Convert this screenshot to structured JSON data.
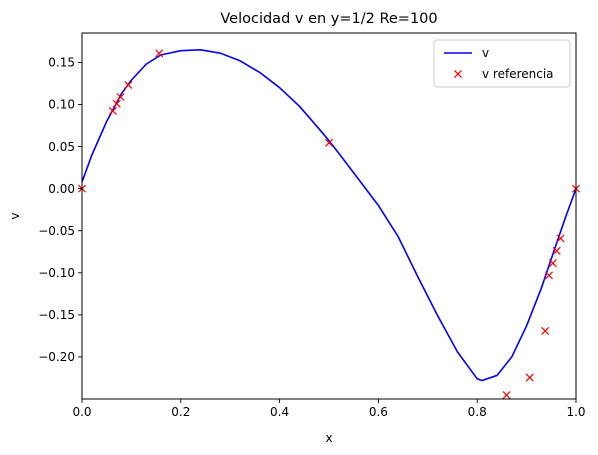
{
  "chart_data": {
    "type": "line",
    "title": "Velocidad v en y=1/2 Re=100",
    "xlabel": "x",
    "ylabel": "v",
    "xlim": [
      0.0,
      1.0
    ],
    "ylim": [
      -0.25,
      0.185
    ],
    "grid": false,
    "legend_position": "top-right",
    "x_ticks": [
      0.0,
      0.2,
      0.4,
      0.6,
      0.8,
      1.0
    ],
    "x_tick_labels": [
      "0.0",
      "0.2",
      "0.4",
      "0.6",
      "0.8",
      "1.0"
    ],
    "y_ticks": [
      0.15,
      0.1,
      0.05,
      0.0,
      -0.05,
      -0.1,
      -0.15,
      -0.2
    ],
    "y_tick_labels": [
      "0.15",
      "0.10",
      "0.05",
      "0.00",
      "−0.05",
      "−0.10",
      "−0.15",
      "−0.20"
    ],
    "series": [
      {
        "name": "v",
        "style": "line",
        "color": "#0000ff",
        "x": [
          0.0,
          0.02,
          0.05,
          0.08,
          0.1,
          0.13,
          0.16,
          0.2,
          0.24,
          0.28,
          0.32,
          0.36,
          0.4,
          0.44,
          0.48,
          0.5,
          0.52,
          0.56,
          0.6,
          0.64,
          0.68,
          0.72,
          0.76,
          0.8,
          0.81,
          0.84,
          0.87,
          0.9,
          0.93,
          0.96,
          0.98,
          1.0
        ],
        "y": [
          0.008,
          0.04,
          0.08,
          0.113,
          0.129,
          0.148,
          0.159,
          0.164,
          0.165,
          0.161,
          0.152,
          0.138,
          0.12,
          0.098,
          0.071,
          0.057,
          0.042,
          0.011,
          -0.02,
          -0.057,
          -0.105,
          -0.151,
          -0.194,
          -0.226,
          -0.228,
          -0.222,
          -0.2,
          -0.163,
          -0.118,
          -0.066,
          -0.032,
          0.0
        ]
      },
      {
        "name": "v referencia",
        "style": "markers",
        "marker": "x",
        "color": "#ff0000",
        "x": [
          0.0,
          0.0625,
          0.0703,
          0.0781,
          0.0938,
          0.1563,
          0.5,
          0.8594,
          0.9063,
          0.9375,
          0.9453,
          0.9531,
          0.9609,
          0.9688,
          1.0
        ],
        "y": [
          0.0,
          0.0923,
          0.1009,
          0.1089,
          0.1232,
          0.1608,
          0.0545,
          -0.2453,
          -0.2245,
          -0.1691,
          -0.1031,
          -0.0886,
          -0.0739,
          -0.0591,
          0.0
        ]
      }
    ]
  }
}
